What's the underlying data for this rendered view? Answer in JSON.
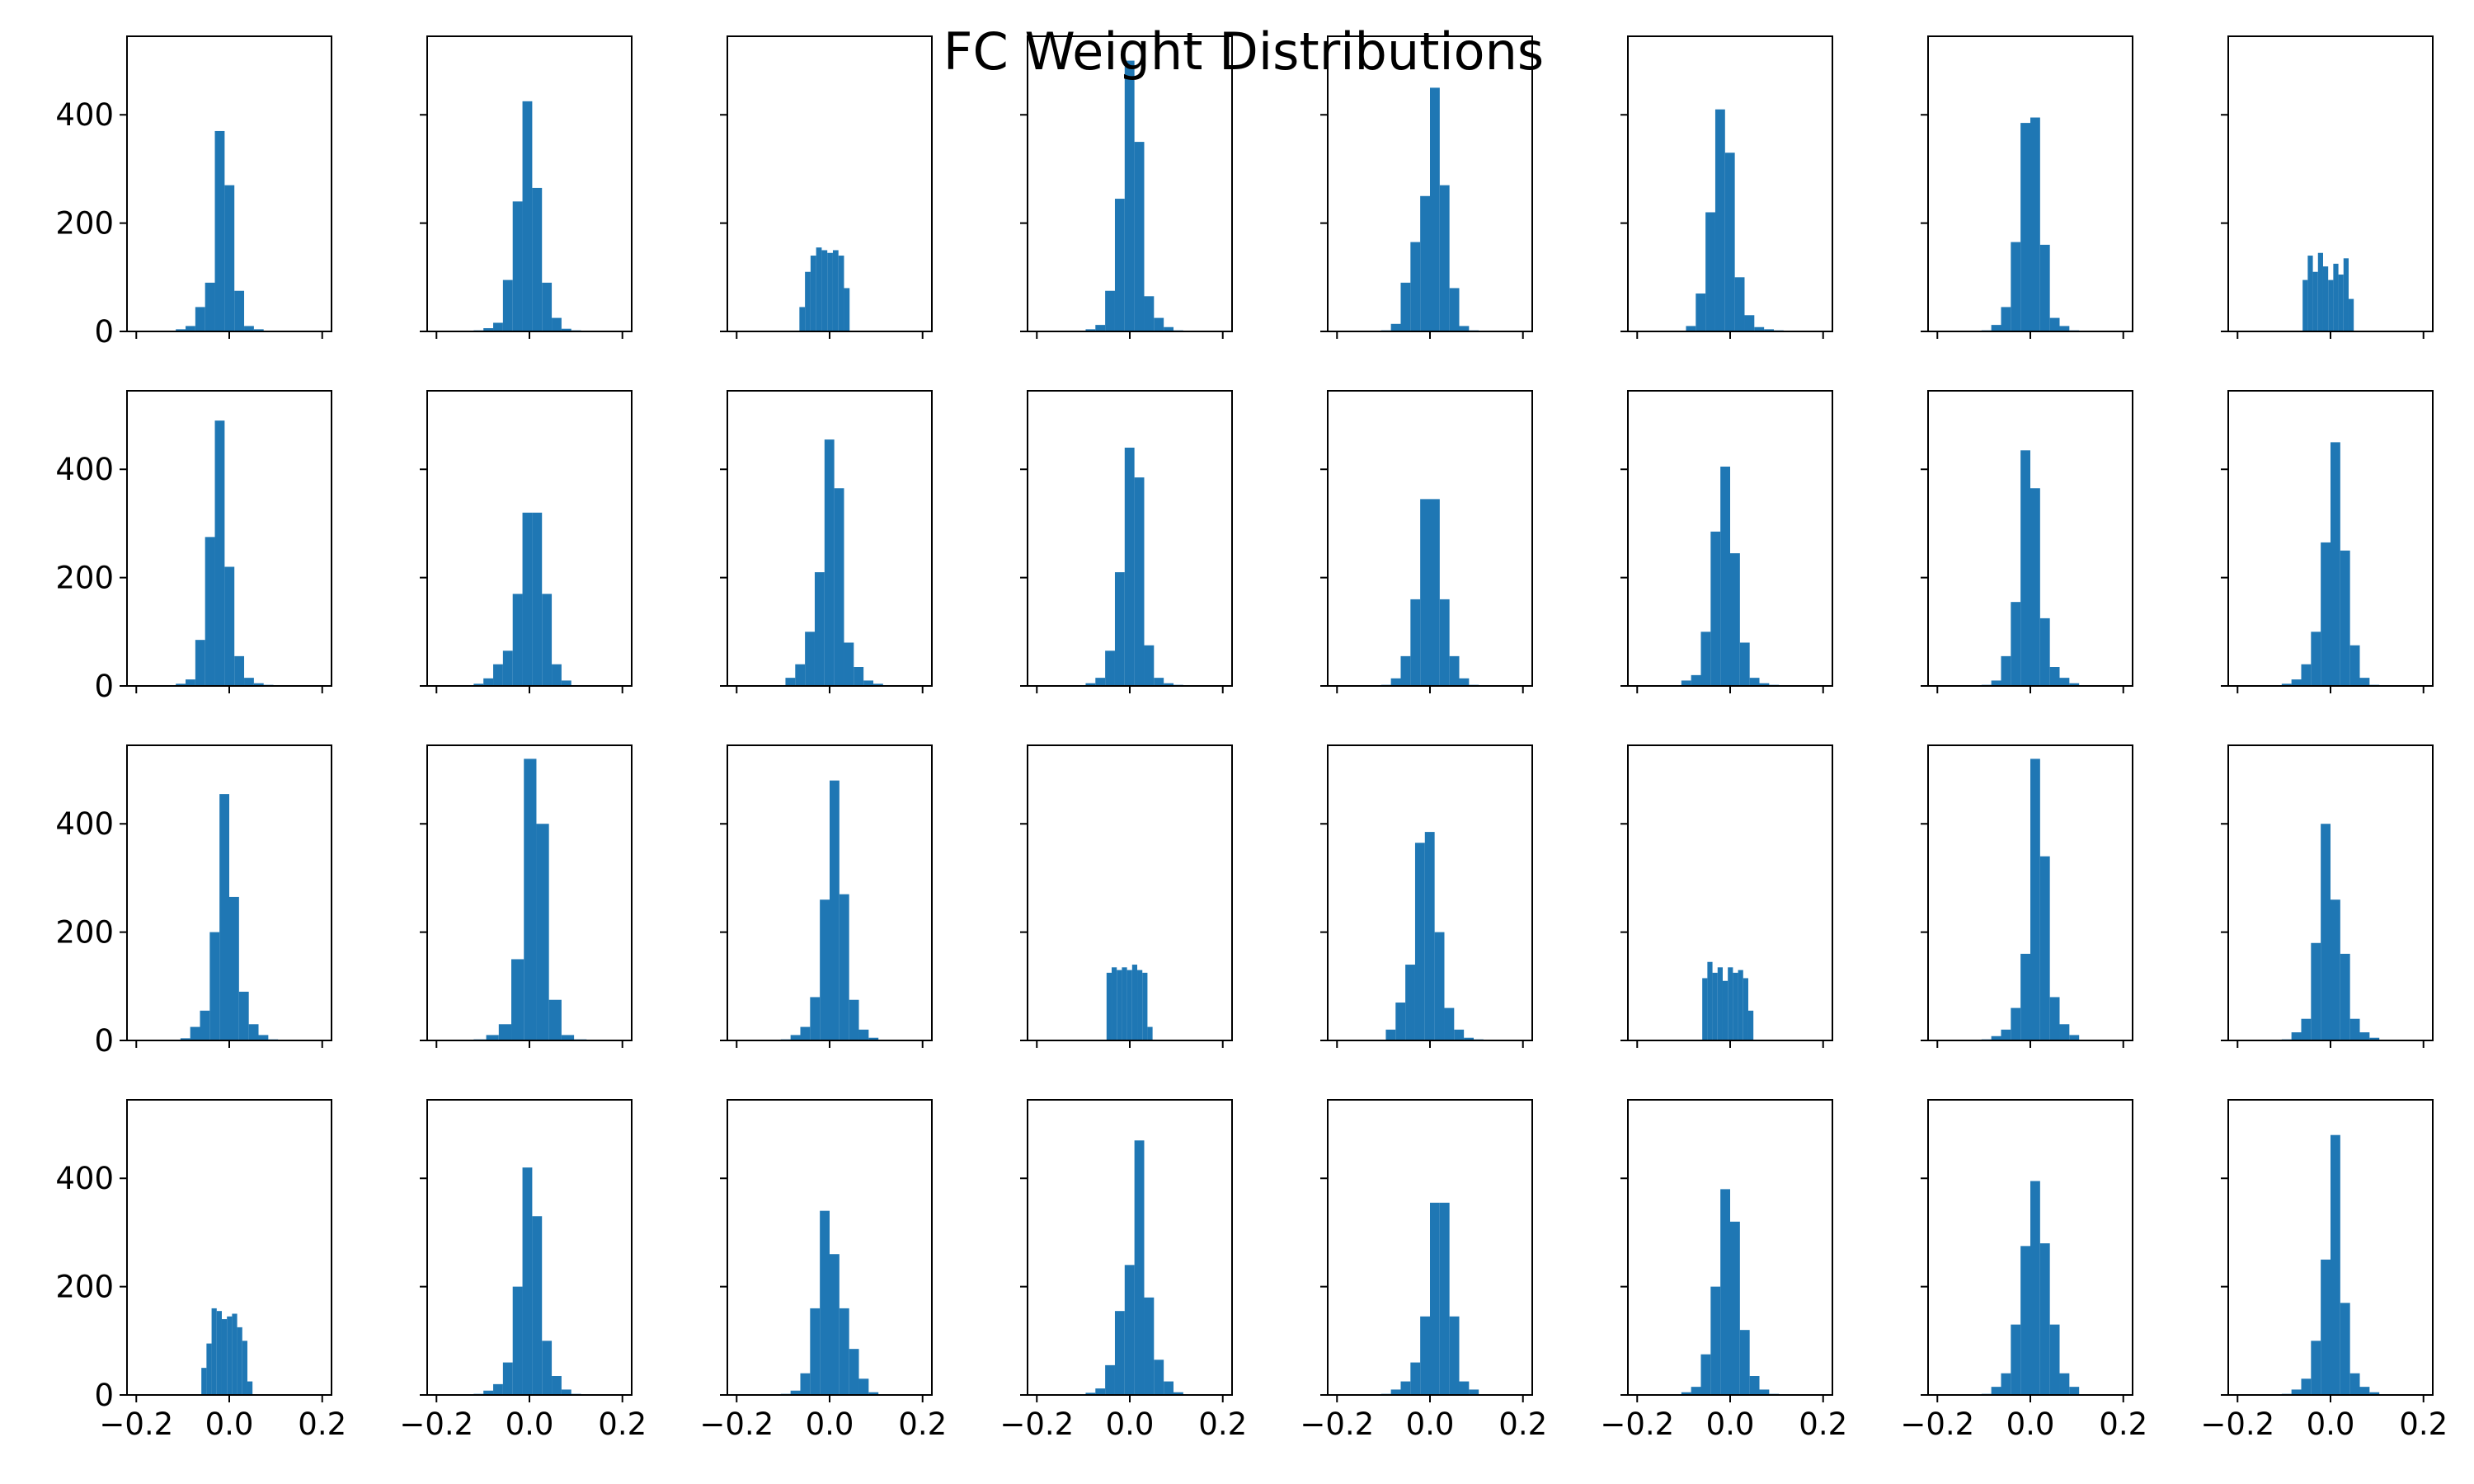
{
  "figure": {
    "title": "FC Weight Distributions",
    "bar_color": "#1f77b4"
  },
  "chart_data": {
    "type": "bar",
    "title": "FC Weight Distributions",
    "rows": 4,
    "cols": 8,
    "sharex": true,
    "sharey": true,
    "xlim": [
      -0.22,
      0.22
    ],
    "ylim": [
      0,
      545
    ],
    "xticks": [
      -0.2,
      0.0,
      0.2
    ],
    "xtick_labels": [
      "−0.2",
      "0.0",
      "0.2"
    ],
    "yticks": [
      0,
      200,
      400
    ],
    "ytick_labels": [
      "0",
      "200",
      "400"
    ],
    "color": "#1f77b4",
    "panels": [
      {
        "row": 0,
        "col": 0,
        "edges": [
          -0.115,
          -0.094,
          -0.073,
          -0.052,
          -0.031,
          -0.01,
          0.011,
          0.032,
          0.053,
          0.074,
          0.095
        ],
        "counts": [
          4,
          10,
          45,
          90,
          370,
          270,
          75,
          10,
          4,
          1
        ]
      },
      {
        "row": 0,
        "col": 1,
        "edges": [
          -0.12,
          -0.099,
          -0.078,
          -0.057,
          -0.036,
          -0.015,
          0.006,
          0.027,
          0.048,
          0.069,
          0.09,
          0.111,
          0.132
        ],
        "counts": [
          2,
          6,
          16,
          95,
          240,
          425,
          265,
          90,
          25,
          5,
          2,
          1
        ]
      },
      {
        "row": 0,
        "col": 2,
        "edges": [
          -0.065,
          -0.053,
          -0.041,
          -0.029,
          -0.017,
          -0.005,
          0.007,
          0.019,
          0.031,
          0.043
        ],
        "counts": [
          45,
          110,
          140,
          155,
          150,
          145,
          150,
          140,
          80
        ]
      },
      {
        "row": 0,
        "col": 3,
        "edges": [
          -0.095,
          -0.074,
          -0.053,
          -0.032,
          -0.011,
          0.01,
          0.031,
          0.052,
          0.073,
          0.094,
          0.115
        ],
        "counts": [
          4,
          12,
          75,
          245,
          500,
          350,
          65,
          25,
          8,
          2
        ]
      },
      {
        "row": 0,
        "col": 4,
        "edges": [
          -0.105,
          -0.084,
          -0.063,
          -0.042,
          -0.021,
          0.0,
          0.021,
          0.042,
          0.063,
          0.084,
          0.105
        ],
        "counts": [
          2,
          14,
          90,
          165,
          250,
          450,
          270,
          80,
          10,
          2
        ]
      },
      {
        "row": 0,
        "col": 5,
        "edges": [
          -0.095,
          -0.074,
          -0.053,
          -0.032,
          -0.011,
          0.01,
          0.031,
          0.052,
          0.073,
          0.094,
          0.115
        ],
        "counts": [
          10,
          70,
          220,
          410,
          330,
          100,
          30,
          8,
          4,
          2
        ]
      },
      {
        "row": 0,
        "col": 6,
        "edges": [
          -0.105,
          -0.084,
          -0.063,
          -0.042,
          -0.021,
          0.0,
          0.021,
          0.042,
          0.063,
          0.084,
          0.105
        ],
        "counts": [
          2,
          12,
          45,
          165,
          385,
          395,
          160,
          25,
          10,
          2
        ]
      },
      {
        "row": 0,
        "col": 7,
        "edges": [
          -0.06,
          -0.049,
          -0.038,
          -0.027,
          -0.016,
          -0.005,
          0.006,
          0.017,
          0.028,
          0.039,
          0.05
        ],
        "counts": [
          95,
          140,
          110,
          145,
          120,
          95,
          125,
          105,
          135,
          60
        ]
      },
      {
        "row": 1,
        "col": 0,
        "edges": [
          -0.115,
          -0.094,
          -0.073,
          -0.052,
          -0.031,
          -0.01,
          0.011,
          0.032,
          0.053,
          0.074,
          0.095,
          0.116
        ],
        "counts": [
          4,
          12,
          85,
          275,
          490,
          220,
          55,
          15,
          5,
          2,
          1
        ]
      },
      {
        "row": 1,
        "col": 1,
        "edges": [
          -0.12,
          -0.099,
          -0.078,
          -0.057,
          -0.036,
          -0.015,
          0.006,
          0.027,
          0.048,
          0.069,
          0.09
        ],
        "counts": [
          4,
          14,
          40,
          65,
          170,
          320,
          320,
          170,
          40,
          10
        ]
      },
      {
        "row": 1,
        "col": 2,
        "edges": [
          -0.095,
          -0.074,
          -0.053,
          -0.032,
          -0.011,
          0.01,
          0.031,
          0.052,
          0.073,
          0.094,
          0.115
        ],
        "counts": [
          15,
          40,
          100,
          210,
          455,
          365,
          80,
          35,
          10,
          4
        ]
      },
      {
        "row": 1,
        "col": 3,
        "edges": [
          -0.095,
          -0.074,
          -0.053,
          -0.032,
          -0.011,
          0.01,
          0.031,
          0.052,
          0.073,
          0.094,
          0.115
        ],
        "counts": [
          5,
          15,
          65,
          210,
          440,
          385,
          75,
          15,
          5,
          2
        ]
      },
      {
        "row": 1,
        "col": 4,
        "edges": [
          -0.105,
          -0.084,
          -0.063,
          -0.042,
          -0.021,
          0.0,
          0.021,
          0.042,
          0.063,
          0.084,
          0.105
        ],
        "counts": [
          2,
          14,
          55,
          160,
          345,
          345,
          160,
          55,
          14,
          2
        ]
      },
      {
        "row": 1,
        "col": 5,
        "edges": [
          -0.105,
          -0.084,
          -0.063,
          -0.042,
          -0.021,
          0.0,
          0.021,
          0.042,
          0.063,
          0.084,
          0.105
        ],
        "counts": [
          10,
          20,
          100,
          285,
          405,
          245,
          80,
          15,
          5,
          2
        ]
      },
      {
        "row": 1,
        "col": 6,
        "edges": [
          -0.105,
          -0.084,
          -0.063,
          -0.042,
          -0.021,
          0.0,
          0.021,
          0.042,
          0.063,
          0.084,
          0.105
        ],
        "counts": [
          2,
          10,
          55,
          155,
          435,
          365,
          125,
          35,
          15,
          5
        ]
      },
      {
        "row": 1,
        "col": 7,
        "edges": [
          -0.105,
          -0.084,
          -0.063,
          -0.042,
          -0.021,
          0.0,
          0.021,
          0.042,
          0.063,
          0.084,
          0.105
        ],
        "counts": [
          4,
          12,
          40,
          100,
          265,
          450,
          250,
          75,
          15,
          2
        ]
      },
      {
        "row": 2,
        "col": 0,
        "edges": [
          -0.105,
          -0.084,
          -0.063,
          -0.042,
          -0.021,
          0.0,
          0.021,
          0.042,
          0.063,
          0.084,
          0.105,
          0.126
        ],
        "counts": [
          4,
          25,
          55,
          200,
          455,
          265,
          90,
          30,
          10,
          2,
          1
        ]
      },
      {
        "row": 2,
        "col": 1,
        "edges": [
          -0.12,
          -0.093,
          -0.066,
          -0.039,
          -0.012,
          0.015,
          0.042,
          0.069,
          0.096,
          0.123
        ],
        "counts": [
          2,
          10,
          30,
          150,
          520,
          400,
          75,
          10,
          2
        ]
      },
      {
        "row": 2,
        "col": 2,
        "edges": [
          -0.105,
          -0.084,
          -0.063,
          -0.042,
          -0.021,
          0.0,
          0.021,
          0.042,
          0.063,
          0.084,
          0.105
        ],
        "counts": [
          2,
          10,
          25,
          80,
          260,
          480,
          270,
          75,
          20,
          5
        ]
      },
      {
        "row": 2,
        "col": 3,
        "edges": [
          -0.05,
          -0.039,
          -0.028,
          -0.017,
          -0.006,
          0.005,
          0.016,
          0.027,
          0.038,
          0.049
        ],
        "counts": [
          125,
          135,
          130,
          135,
          130,
          140,
          130,
          125,
          25
        ]
      },
      {
        "row": 2,
        "col": 4,
        "edges": [
          -0.095,
          -0.074,
          -0.053,
          -0.032,
          -0.011,
          0.01,
          0.031,
          0.052,
          0.073,
          0.094,
          0.115
        ],
        "counts": [
          20,
          70,
          140,
          365,
          385,
          200,
          60,
          20,
          5,
          2
        ]
      },
      {
        "row": 2,
        "col": 5,
        "edges": [
          -0.06,
          -0.049,
          -0.038,
          -0.027,
          -0.016,
          -0.005,
          0.006,
          0.017,
          0.028,
          0.039,
          0.05
        ],
        "counts": [
          115,
          145,
          125,
          135,
          110,
          135,
          125,
          130,
          115,
          55
        ]
      },
      {
        "row": 2,
        "col": 6,
        "edges": [
          -0.105,
          -0.084,
          -0.063,
          -0.042,
          -0.021,
          0.0,
          0.021,
          0.042,
          0.063,
          0.084,
          0.105
        ],
        "counts": [
          2,
          8,
          20,
          60,
          160,
          520,
          340,
          80,
          30,
          10
        ]
      },
      {
        "row": 2,
        "col": 7,
        "edges": [
          -0.105,
          -0.084,
          -0.063,
          -0.042,
          -0.021,
          0.0,
          0.021,
          0.042,
          0.063,
          0.084,
          0.105
        ],
        "counts": [
          2,
          15,
          40,
          180,
          400,
          260,
          160,
          40,
          15,
          5
        ]
      },
      {
        "row": 3,
        "col": 0,
        "edges": [
          -0.06,
          -0.049,
          -0.038,
          -0.027,
          -0.016,
          -0.005,
          0.006,
          0.017,
          0.028,
          0.039,
          0.05
        ],
        "counts": [
          50,
          95,
          160,
          155,
          140,
          145,
          150,
          125,
          100,
          25
        ]
      },
      {
        "row": 3,
        "col": 1,
        "edges": [
          -0.12,
          -0.099,
          -0.078,
          -0.057,
          -0.036,
          -0.015,
          0.006,
          0.027,
          0.048,
          0.069,
          0.09,
          0.111
        ],
        "counts": [
          2,
          8,
          20,
          60,
          200,
          420,
          330,
          100,
          35,
          10,
          2
        ]
      },
      {
        "row": 3,
        "col": 2,
        "edges": [
          -0.105,
          -0.084,
          -0.063,
          -0.042,
          -0.021,
          0.0,
          0.021,
          0.042,
          0.063,
          0.084,
          0.105
        ],
        "counts": [
          2,
          8,
          40,
          160,
          340,
          260,
          160,
          85,
          30,
          5
        ]
      },
      {
        "row": 3,
        "col": 3,
        "edges": [
          -0.095,
          -0.074,
          -0.053,
          -0.032,
          -0.011,
          0.01,
          0.031,
          0.052,
          0.073,
          0.094,
          0.115
        ],
        "counts": [
          4,
          12,
          55,
          155,
          240,
          470,
          180,
          65,
          25,
          5
        ]
      },
      {
        "row": 3,
        "col": 4,
        "edges": [
          -0.105,
          -0.084,
          -0.063,
          -0.042,
          -0.021,
          0.0,
          0.021,
          0.042,
          0.063,
          0.084,
          0.105
        ],
        "counts": [
          2,
          10,
          25,
          60,
          145,
          355,
          355,
          145,
          25,
          10
        ]
      },
      {
        "row": 3,
        "col": 5,
        "edges": [
          -0.105,
          -0.084,
          -0.063,
          -0.042,
          -0.021,
          0.0,
          0.021,
          0.042,
          0.063,
          0.084,
          0.105
        ],
        "counts": [
          5,
          15,
          75,
          200,
          380,
          320,
          120,
          35,
          10,
          2
        ]
      },
      {
        "row": 3,
        "col": 6,
        "edges": [
          -0.105,
          -0.084,
          -0.063,
          -0.042,
          -0.021,
          0.0,
          0.021,
          0.042,
          0.063,
          0.084,
          0.105
        ],
        "counts": [
          2,
          15,
          40,
          130,
          275,
          395,
          280,
          130,
          40,
          15
        ]
      },
      {
        "row": 3,
        "col": 7,
        "edges": [
          -0.105,
          -0.084,
          -0.063,
          -0.042,
          -0.021,
          0.0,
          0.021,
          0.042,
          0.063,
          0.084,
          0.105
        ],
        "counts": [
          2,
          10,
          30,
          100,
          250,
          480,
          170,
          40,
          15,
          5
        ]
      }
    ]
  }
}
